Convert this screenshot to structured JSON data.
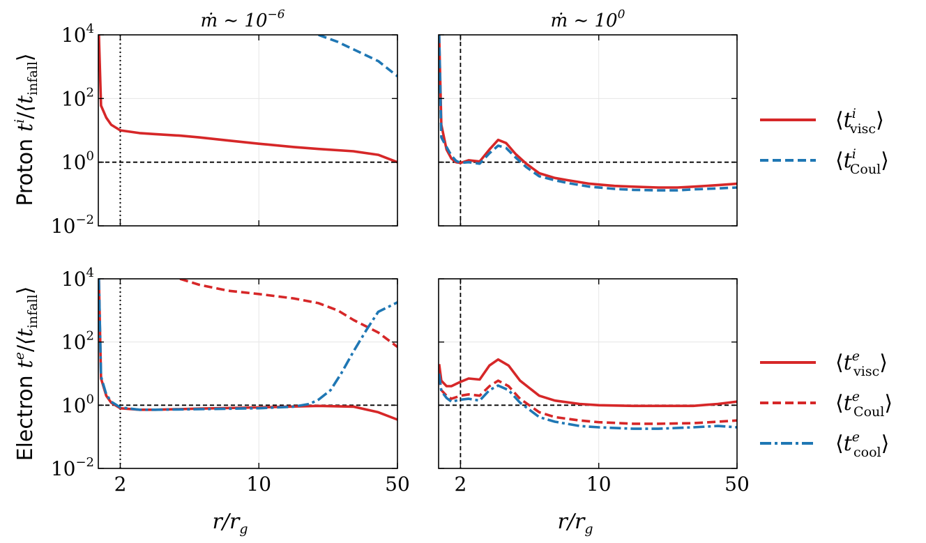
{
  "colors": {
    "red": "#d62728",
    "blue": "#1f77b4",
    "black": "#000000",
    "grid": "#e6e6e6"
  },
  "chart_data": {
    "type": "line",
    "xscale": "log",
    "yscale": "log",
    "xlim": [
      1.55,
      50
    ],
    "ylim": [
      0.01,
      10000
    ],
    "xticks": [
      2,
      10,
      50
    ],
    "xtick_labels": [
      "2",
      "10",
      "50"
    ],
    "yticks": [
      0.01,
      1,
      100,
      10000
    ],
    "ytick_labels": [
      {
        "base": "10",
        "exp": "−2"
      },
      {
        "base": "10",
        "exp": "0"
      },
      {
        "base": "10",
        "exp": "2"
      },
      {
        "base": "10",
        "exp": "4"
      }
    ],
    "xlabel": {
      "main": "r/r",
      "sub": "g"
    },
    "row_labels": [
      {
        "prefix": "Proton",
        "var": "t",
        "sup": "i",
        "den": "⟨t",
        "den_sub": "infall",
        "close": "⟩"
      },
      {
        "prefix": "Electron",
        "var": "t",
        "sup": "e",
        "den": "⟨t",
        "den_sub": "infall",
        "close": "⟩"
      }
    ],
    "column_titles": [
      {
        "lhs": "ṁ ∼ 10",
        "exp": "−6"
      },
      {
        "lhs": "ṁ ∼ 10",
        "exp": "0"
      }
    ],
    "hlines": [
      1
    ],
    "legends": [
      {
        "row": 0,
        "entries": [
          {
            "name": "visc",
            "sup": "i",
            "color": "red",
            "dash": "solid"
          },
          {
            "name": "Coul",
            "sup": "i",
            "color": "blue",
            "dash": "dashed"
          }
        ]
      },
      {
        "row": 1,
        "entries": [
          {
            "name": "visc",
            "sup": "e",
            "color": "red",
            "dash": "solid"
          },
          {
            "name": "Coul",
            "sup": "e",
            "color": "red",
            "dash": "dashed"
          },
          {
            "name": "cool",
            "sup": "e",
            "color": "blue",
            "dash": "dashdot"
          }
        ]
      }
    ],
    "panels": [
      {
        "row": 0,
        "col": 0,
        "vline": {
          "x": 2,
          "style": "dotted"
        },
        "series": [
          {
            "name": "visc",
            "color": "red",
            "dash": "solid",
            "x": [
              1.56,
              1.6,
              1.7,
              1.8,
              2,
              2.5,
              3,
              4,
              5,
              7,
              10,
              15,
              20,
              30,
              40,
              50
            ],
            "y": [
              10000,
              60,
              25,
              15,
              10,
              8.2,
              7.6,
              6.8,
              6.0,
              4.8,
              3.8,
              3.0,
              2.6,
              2.2,
              1.7,
              1.0
            ]
          },
          {
            "name": "Coul",
            "color": "blue",
            "dash": "dashed",
            "x": [
              20,
              25,
              30,
              40,
              50
            ],
            "y": [
              10000,
              6000,
              3500,
              1500,
              500
            ]
          }
        ]
      },
      {
        "row": 0,
        "col": 1,
        "vline": {
          "x": 2,
          "style": "dashed"
        },
        "series": [
          {
            "name": "visc",
            "color": "red",
            "dash": "solid",
            "x": [
              1.56,
              1.6,
              1.7,
              1.8,
              1.9,
              2,
              2.2,
              2.5,
              2.8,
              3.1,
              3.4,
              3.8,
              4.3,
              5,
              6,
              7,
              9,
              12,
              15,
              20,
              25,
              30,
              40,
              50
            ],
            "y": [
              10000,
              15,
              2.5,
              1.3,
              1.0,
              0.95,
              1.15,
              1.05,
              2.5,
              5.0,
              4.0,
              1.8,
              0.9,
              0.45,
              0.32,
              0.27,
              0.21,
              0.18,
              0.17,
              0.16,
              0.16,
              0.17,
              0.19,
              0.21
            ]
          },
          {
            "name": "Coul",
            "color": "blue",
            "dash": "dashed",
            "x": [
              1.56,
              1.6,
              1.7,
              1.8,
              1.9,
              2,
              2.2,
              2.5,
              2.8,
              3.1,
              3.4,
              3.8,
              4.3,
              5,
              6,
              7,
              9,
              12,
              15,
              20,
              25,
              30,
              40,
              50
            ],
            "y": [
              10000,
              6,
              3,
              1.6,
              1.1,
              0.95,
              1.0,
              0.9,
              1.9,
              3.3,
              2.8,
              1.4,
              0.7,
              0.36,
              0.27,
              0.22,
              0.17,
              0.145,
              0.135,
              0.13,
              0.13,
              0.14,
              0.15,
              0.16
            ]
          }
        ]
      },
      {
        "row": 1,
        "col": 0,
        "vline": {
          "x": 2,
          "style": "dotted"
        },
        "series": [
          {
            "name": "visc",
            "color": "red",
            "dash": "solid",
            "x": [
              1.56,
              1.6,
              1.7,
              1.8,
              2,
              2.5,
              3,
              5,
              10,
              20,
              30,
              40,
              50
            ],
            "y": [
              10000,
              7,
              2,
              1.2,
              0.8,
              0.72,
              0.72,
              0.78,
              0.85,
              0.95,
              0.9,
              0.6,
              0.35
            ]
          },
          {
            "name": "Coul",
            "color": "red",
            "dash": "dashed",
            "x": [
              4,
              5,
              7,
              10,
              15,
              20,
              25,
              30,
              40,
              50
            ],
            "y": [
              10000,
              6500,
              4200,
              3300,
              2400,
              1700,
              1000,
              500,
              200,
              70
            ]
          },
          {
            "name": "cool",
            "color": "blue",
            "dash": "dashdot",
            "x": [
              1.56,
              1.6,
              1.7,
              1.8,
              2,
              2.5,
              3,
              5,
              10,
              15,
              18,
              20,
              23,
              26,
              30,
              35,
              40,
              45,
              50
            ],
            "y": [
              10000,
              8,
              2.2,
              1.3,
              0.85,
              0.72,
              0.72,
              0.75,
              0.8,
              0.9,
              1.1,
              1.5,
              3,
              10,
              50,
              250,
              900,
              1300,
              1800
            ]
          }
        ]
      },
      {
        "row": 1,
        "col": 1,
        "vline": {
          "x": 2,
          "style": "dashed"
        },
        "series": [
          {
            "name": "visc",
            "color": "red",
            "dash": "solid",
            "x": [
              1.56,
              1.6,
              1.7,
              1.8,
              2,
              2.2,
              2.5,
              2.8,
              3.1,
              3.5,
              4,
              5,
              6,
              8,
              10,
              15,
              20,
              30,
              40,
              50
            ],
            "y": [
              20,
              6,
              4,
              4,
              5.5,
              7,
              6.5,
              18,
              28,
              18,
              6,
              2,
              1.4,
              1.1,
              1.0,
              0.95,
              0.95,
              0.95,
              1.1,
              1.3
            ]
          },
          {
            "name": "Coul",
            "color": "red",
            "dash": "dashed",
            "x": [
              1.56,
              1.6,
              1.7,
              1.8,
              2,
              2.2,
              2.5,
              2.8,
              3.1,
              3.5,
              4,
              5,
              6,
              8,
              10,
              15,
              20,
              30,
              40,
              50
            ],
            "y": [
              8,
              3,
              2,
              1.6,
              2,
              2.2,
              2,
              4,
              6,
              4,
              1.6,
              0.6,
              0.42,
              0.33,
              0.29,
              0.26,
              0.26,
              0.27,
              0.3,
              0.33
            ]
          },
          {
            "name": "cool",
            "color": "blue",
            "dash": "dashdot",
            "x": [
              1.56,
              1.6,
              1.7,
              1.8,
              2,
              2.2,
              2.5,
              2.8,
              3.1,
              3.5,
              4,
              5,
              6,
              8,
              10,
              15,
              20,
              30,
              40,
              50
            ],
            "y": [
              10,
              2.8,
              1.7,
              1.3,
              1.5,
              1.6,
              1.4,
              3,
              4.2,
              3,
              1.2,
              0.42,
              0.3,
              0.22,
              0.2,
              0.18,
              0.18,
              0.2,
              0.22,
              0.2
            ]
          }
        ]
      }
    ]
  }
}
